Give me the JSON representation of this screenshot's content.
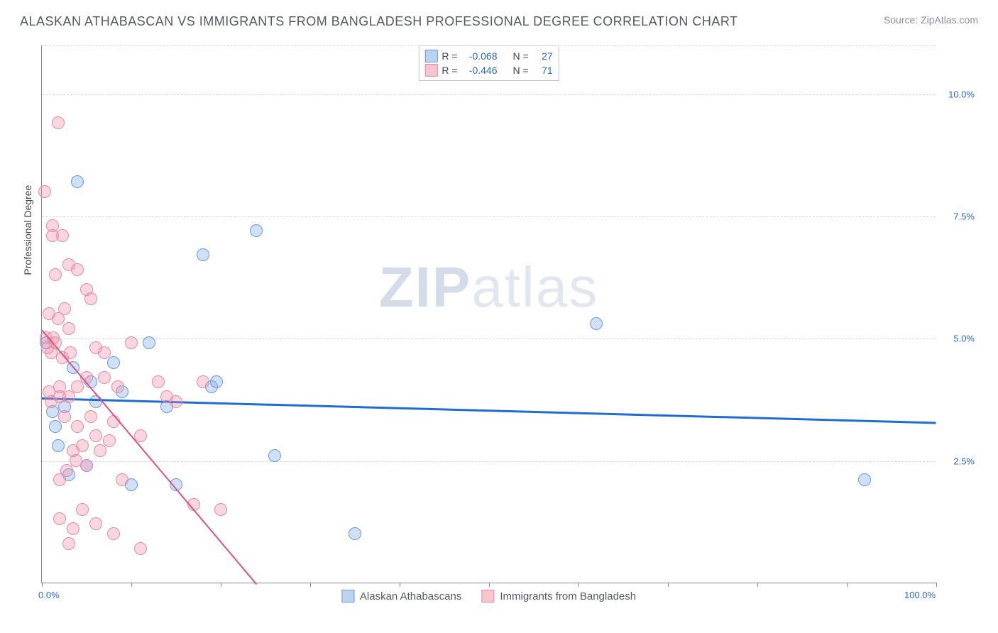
{
  "title": "ALASKAN ATHABASCAN VS IMMIGRANTS FROM BANGLADESH PROFESSIONAL DEGREE CORRELATION CHART",
  "source": "Source: ZipAtlas.com",
  "watermark_bold": "ZIP",
  "watermark_rest": "atlas",
  "chart": {
    "type": "scatter",
    "y_label": "Professional Degree",
    "x_range": [
      0,
      100
    ],
    "y_range": [
      0,
      11
    ],
    "x_tick_positions": [
      0,
      10,
      20,
      30,
      40,
      50,
      60,
      70,
      80,
      90,
      100
    ],
    "x_tick_labels": {
      "0": "0.0%",
      "100": "100.0%"
    },
    "y_gridlines": [
      2.5,
      5.0,
      7.5,
      10.0
    ],
    "y_tick_labels": {
      "2.5": "2.5%",
      "5.0": "5.0%",
      "7.5": "7.5%",
      "10.0": "10.0%"
    },
    "background_color": "#ffffff",
    "grid_color": "#d8d8d8",
    "axis_color": "#888888",
    "tick_label_color": "#2968c8",
    "title_color": "#555a5f",
    "title_fontsize": 18,
    "label_fontsize": 14,
    "tick_fontsize": 13,
    "series": [
      {
        "name": "Alaskan Athabascans",
        "color_fill": "rgba(120,165,230,0.35)",
        "color_stroke": "#6a9ad8",
        "marker_radius": 9,
        "trend_color": "#1f6dd0",
        "trend_width": 2.5,
        "trend": {
          "x1": 0,
          "y1": 3.8,
          "x2": 100,
          "y2": 3.3
        },
        "R": "-0.068",
        "N": "27",
        "points": [
          [
            0.5,
            4.9
          ],
          [
            1.2,
            3.5
          ],
          [
            1.5,
            3.2
          ],
          [
            1.8,
            2.8
          ],
          [
            2.5,
            3.6
          ],
          [
            3.0,
            2.2
          ],
          [
            3.5,
            4.4
          ],
          [
            4.0,
            8.2
          ],
          [
            5.0,
            2.4
          ],
          [
            5.5,
            4.1
          ],
          [
            6.0,
            3.7
          ],
          [
            8.0,
            4.5
          ],
          [
            9.0,
            3.9
          ],
          [
            10.0,
            2.0
          ],
          [
            12.0,
            4.9
          ],
          [
            14.0,
            3.6
          ],
          [
            15.0,
            2.0
          ],
          [
            18.0,
            6.7
          ],
          [
            19.0,
            4.0
          ],
          [
            19.5,
            4.1
          ],
          [
            24.0,
            7.2
          ],
          [
            26.0,
            2.6
          ],
          [
            35.0,
            1.0
          ],
          [
            62.0,
            5.3
          ],
          [
            92.0,
            2.1
          ]
        ]
      },
      {
        "name": "Immigrants from Bangladesh",
        "color_fill": "rgba(240,140,165,0.35)",
        "color_stroke": "#e88aa2",
        "marker_radius": 9,
        "trend_color": "#e05080",
        "trend_width": 2,
        "trend": {
          "x1": 0,
          "y1": 5.2,
          "x2": 24,
          "y2": 0
        },
        "R": "-0.446",
        "N": "71",
        "points": [
          [
            0.3,
            8.0
          ],
          [
            0.5,
            5.0
          ],
          [
            0.6,
            4.8
          ],
          [
            0.8,
            3.9
          ],
          [
            0.8,
            5.5
          ],
          [
            1.0,
            4.7
          ],
          [
            1.0,
            3.7
          ],
          [
            1.2,
            7.3
          ],
          [
            1.2,
            7.1
          ],
          [
            1.3,
            5.0
          ],
          [
            1.5,
            6.3
          ],
          [
            1.5,
            4.9
          ],
          [
            1.8,
            9.4
          ],
          [
            1.8,
            5.4
          ],
          [
            2.0,
            3.8
          ],
          [
            2.0,
            4.0
          ],
          [
            2.0,
            2.1
          ],
          [
            2.0,
            1.3
          ],
          [
            2.3,
            4.6
          ],
          [
            2.3,
            7.1
          ],
          [
            2.5,
            3.4
          ],
          [
            2.5,
            5.6
          ],
          [
            2.8,
            2.3
          ],
          [
            3.0,
            6.5
          ],
          [
            3.0,
            5.2
          ],
          [
            3.0,
            3.8
          ],
          [
            3.0,
            0.8
          ],
          [
            3.2,
            4.7
          ],
          [
            3.5,
            2.7
          ],
          [
            3.5,
            1.1
          ],
          [
            3.8,
            2.5
          ],
          [
            4.0,
            6.4
          ],
          [
            4.0,
            4.0
          ],
          [
            4.0,
            3.2
          ],
          [
            4.5,
            2.8
          ],
          [
            4.5,
            1.5
          ],
          [
            5.0,
            6.0
          ],
          [
            5.0,
            4.2
          ],
          [
            5.0,
            2.4
          ],
          [
            5.5,
            3.4
          ],
          [
            5.5,
            5.8
          ],
          [
            6.0,
            4.8
          ],
          [
            6.0,
            3.0
          ],
          [
            6.0,
            1.2
          ],
          [
            6.5,
            2.7
          ],
          [
            7.0,
            4.2
          ],
          [
            7.0,
            4.7
          ],
          [
            7.5,
            2.9
          ],
          [
            8.0,
            3.3
          ],
          [
            8.0,
            1.0
          ],
          [
            8.5,
            4.0
          ],
          [
            9.0,
            2.1
          ],
          [
            10.0,
            4.9
          ],
          [
            11.0,
            3.0
          ],
          [
            11.0,
            0.7
          ],
          [
            13.0,
            4.1
          ],
          [
            14.0,
            3.8
          ],
          [
            15.0,
            3.7
          ],
          [
            17.0,
            1.6
          ],
          [
            18.0,
            4.1
          ],
          [
            20.0,
            1.5
          ]
        ]
      }
    ],
    "legend_top": {
      "rows": [
        {
          "swatch_fill": "rgba(120,165,230,0.5)",
          "swatch_stroke": "#6a9ad8",
          "r_label": "R =",
          "r_val": "-0.068",
          "n_label": "N =",
          "n_val": "27"
        },
        {
          "swatch_fill": "rgba(240,140,165,0.5)",
          "swatch_stroke": "#e88aa2",
          "r_label": "R =",
          "r_val": "-0.446",
          "n_label": "N =",
          "n_val": "71"
        }
      ]
    },
    "legend_bottom": [
      {
        "swatch_fill": "rgba(120,165,230,0.5)",
        "swatch_stroke": "#6a9ad8",
        "label": "Alaskan Athabascans"
      },
      {
        "swatch_fill": "rgba(240,140,165,0.5)",
        "swatch_stroke": "#e88aa2",
        "label": "Immigrants from Bangladesh"
      }
    ]
  }
}
